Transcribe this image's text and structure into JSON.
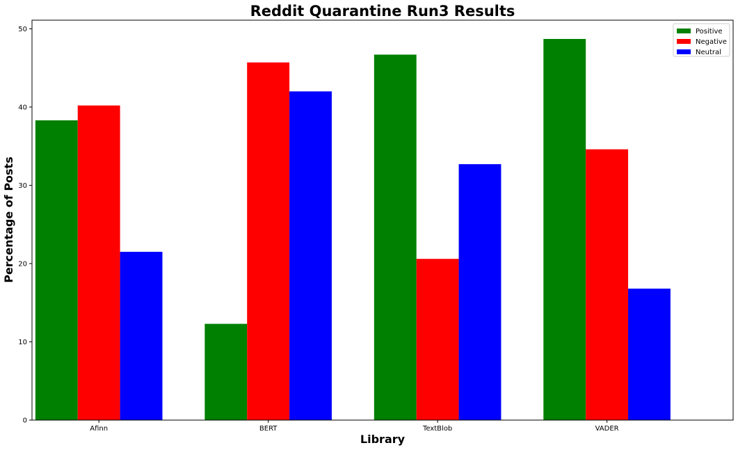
{
  "chart_data": {
    "type": "bar",
    "title": "Reddit Quarantine Run3 Results",
    "xlabel": "Library",
    "ylabel": "Percentage of Posts",
    "categories": [
      "Afinn",
      "BERT",
      "TextBlob",
      "VADER"
    ],
    "series": [
      {
        "name": "Positive",
        "color": "#008000",
        "values": [
          38.3,
          12.3,
          46.7,
          48.7
        ]
      },
      {
        "name": "Negative",
        "color": "#ff0000",
        "values": [
          40.2,
          45.7,
          20.6,
          34.6
        ]
      },
      {
        "name": "Neutral",
        "color": "#0000ff",
        "values": [
          21.5,
          42.0,
          32.7,
          16.8
        ]
      }
    ],
    "ylim": [
      0,
      51.1
    ],
    "yticks": [
      "0",
      "10",
      "20",
      "30",
      "40",
      "50"
    ],
    "grid": false,
    "legend_position": "top-right"
  }
}
